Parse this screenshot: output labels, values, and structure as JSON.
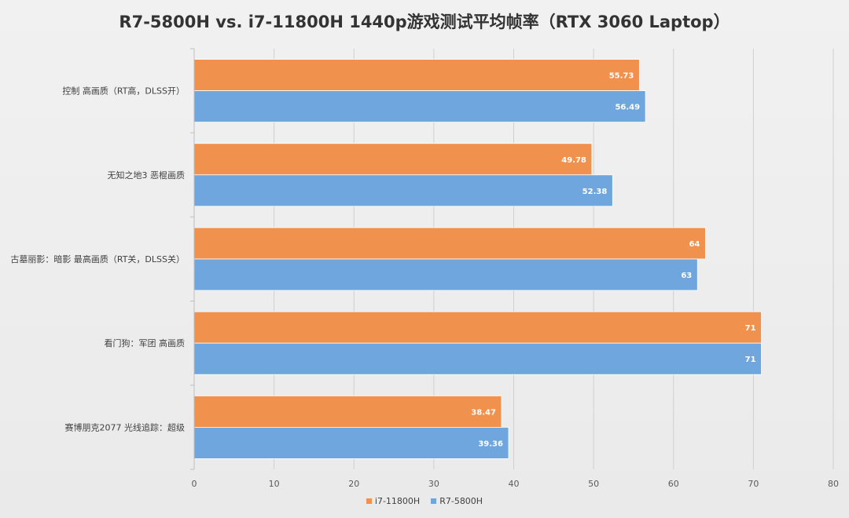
{
  "chart_data": {
    "type": "bar",
    "orientation": "horizontal",
    "title": "R7-5800H vs. i7-11800H 1440p游戏测试平均帧率（RTX 3060 Laptop）",
    "xlabel": "",
    "ylabel": "",
    "categories": [
      "控制 高画质（RT高，DLSS开）",
      "无知之地3 恶棍画质",
      "古墓丽影：暗影 最高画质（RT关，DLSS关）",
      "看门狗：军团 高画质",
      "赛博朋克2077 光线追踪：超级"
    ],
    "series": [
      {
        "name": "i7-11800H",
        "color": "#f0924e",
        "values": [
          55.73,
          49.78,
          64,
          71,
          38.47
        ]
      },
      {
        "name": "R7-5800H",
        "color": "#6fa6dd",
        "values": [
          56.49,
          52.38,
          63,
          71,
          39.36
        ]
      }
    ],
    "xlim": [
      0,
      80
    ],
    "xticks": [
      0,
      10,
      20,
      30,
      40,
      50,
      60,
      70,
      80
    ],
    "data_labels": true,
    "grid": true,
    "legend_position": "bottom"
  }
}
